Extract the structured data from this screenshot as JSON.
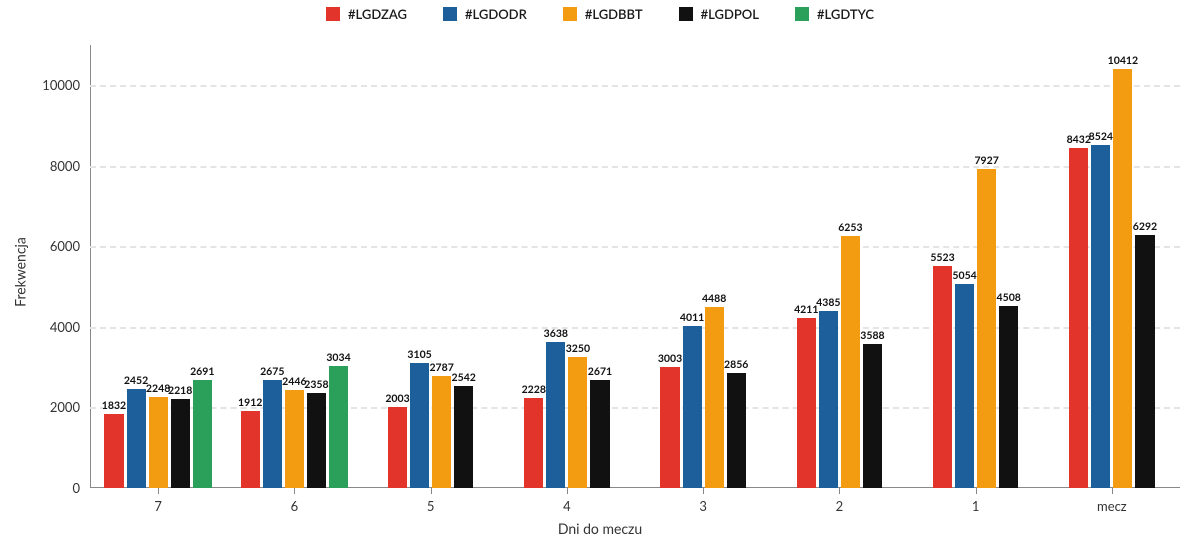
{
  "chart": {
    "type": "grouped-bar",
    "background_color": "#ffffff",
    "grid_color": "#e4e4e4",
    "axis_color": "#888888",
    "text_color": "#333333",
    "value_label_fontsize": 10.5,
    "axis_label_fontsize": 14,
    "tick_fontsize": 13,
    "legend_fontsize": 13,
    "y_axis_label": "Frekwencja",
    "x_axis_label": "Dni do meczu",
    "ylim": [
      0,
      11000
    ],
    "yticks": [
      0,
      2000,
      4000,
      6000,
      8000,
      10000
    ],
    "categories": [
      "7",
      "6",
      "5",
      "4",
      "3",
      "2",
      "1",
      "mecz"
    ],
    "series": [
      {
        "name": "#LGDZAG",
        "color": "#e3342b"
      },
      {
        "name": "#LGDODR",
        "color": "#1c5f9a"
      },
      {
        "name": "#LGDBBT",
        "color": "#f39c12"
      },
      {
        "name": "#LGDPOL",
        "color": "#111111"
      },
      {
        "name": "#LGDTYC",
        "color": "#2aa05a"
      }
    ],
    "data": {
      "7": [
        1832,
        2452,
        2248,
        2218,
        2691
      ],
      "6": [
        1912,
        2675,
        2446,
        2358,
        3034
      ],
      "5": [
        2003,
        3105,
        2787,
        2542,
        null
      ],
      "4": [
        2228,
        3638,
        3250,
        2671,
        null
      ],
      "3": [
        3003,
        4011,
        4488,
        2856,
        null
      ],
      "2": [
        4211,
        4385,
        6253,
        3588,
        null
      ],
      "1": [
        5523,
        5054,
        7927,
        4508,
        null
      ],
      "mecz": [
        8432,
        8524,
        10412,
        6292,
        null
      ]
    },
    "bar_width_rel": 0.14,
    "group_inner_gap_rel": 0.022
  }
}
